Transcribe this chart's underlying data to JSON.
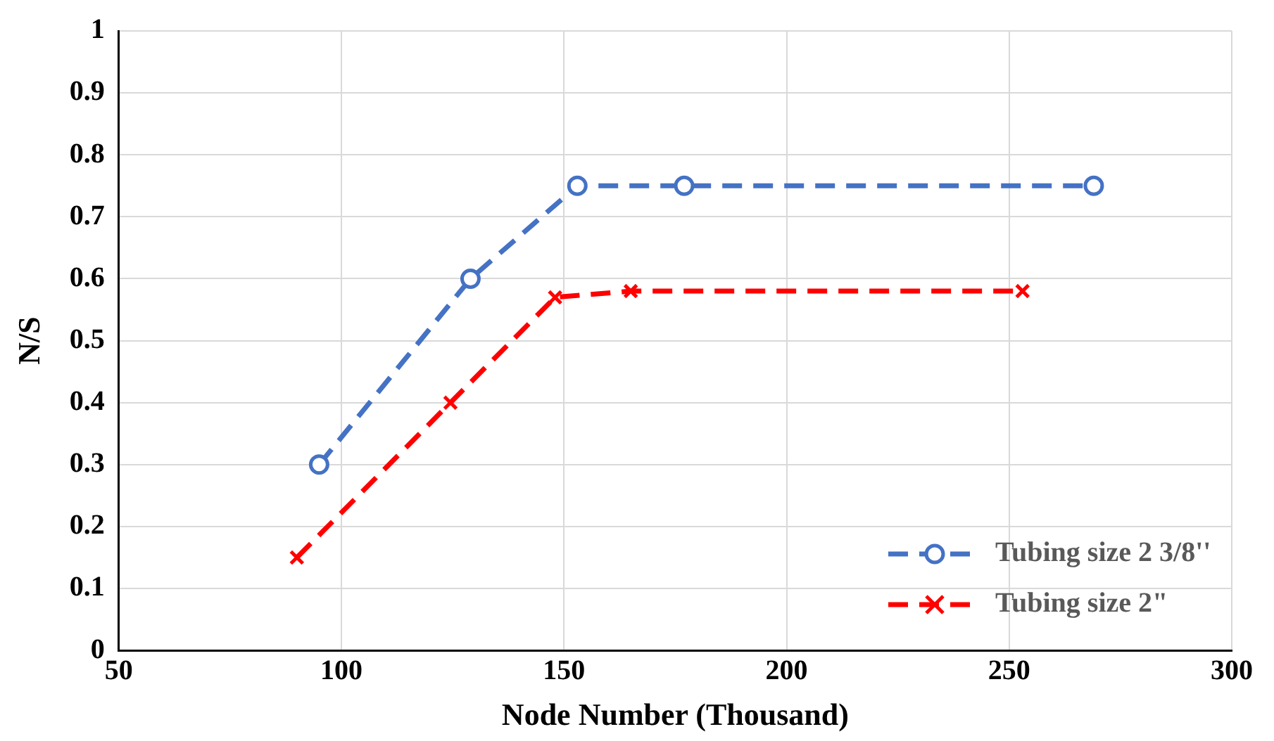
{
  "chart_data": {
    "type": "line",
    "xlabel": "Node Number (Thousand)",
    "ylabel": "N/S",
    "xlim": [
      50,
      300
    ],
    "xticks": [
      50,
      100,
      150,
      200,
      250,
      300
    ],
    "ylim": [
      0,
      1
    ],
    "yticks": [
      0,
      0.1,
      0.2,
      0.3,
      0.4,
      0.5,
      0.6,
      0.7,
      0.8,
      0.9,
      1
    ],
    "grid": true,
    "legend": "bottom right",
    "line_style": "dashed",
    "series": [
      {
        "name": "Tubing size 2 3/8''",
        "color": "#4472c4",
        "marker": "circle",
        "x": [
          95,
          129,
          153,
          177,
          269
        ],
        "values": [
          0.3,
          0.6,
          0.75,
          0.75,
          0.75
        ]
      },
      {
        "name": "Tubing size 2\"",
        "color": "#ff0000",
        "marker": "cross",
        "x": [
          90,
          124.5,
          148,
          165,
          253
        ],
        "values": [
          0.15,
          0.4,
          0.57,
          0.58,
          0.58
        ]
      }
    ]
  }
}
